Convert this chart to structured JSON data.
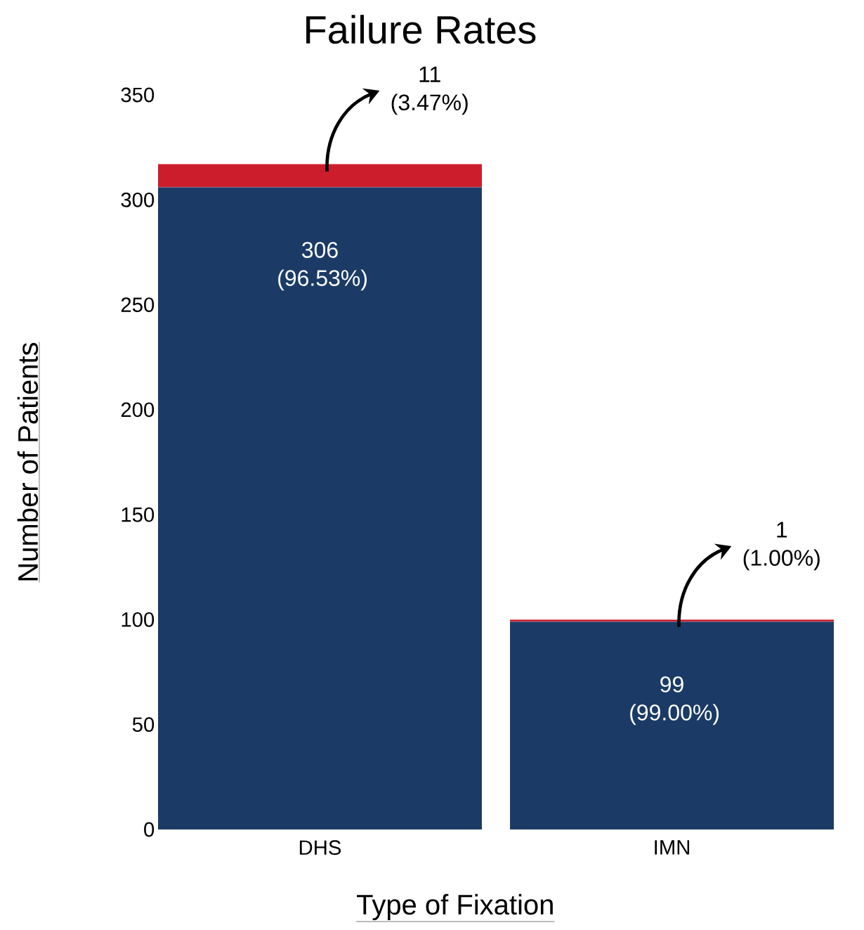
{
  "chart_data": {
    "type": "bar",
    "title": "Failure Rates",
    "xlabel": "Type of Fixation",
    "ylabel": "Number of Patients",
    "categories": [
      "DHS",
      "IMN"
    ],
    "stacked": true,
    "series": [
      {
        "color": "#1b3b66",
        "values": [
          306,
          99
        ],
        "value_labels": [
          "306 (96.53%)",
          "99 (99.00%)"
        ]
      },
      {
        "color": "#cc1d2c",
        "values": [
          11,
          1
        ],
        "value_labels": [
          "11 (3.47%)",
          "1 (1.00%)"
        ]
      }
    ],
    "ylim": [
      0,
      350
    ],
    "yticks": [
      0,
      50,
      100,
      150,
      200,
      250,
      300,
      350
    ]
  }
}
